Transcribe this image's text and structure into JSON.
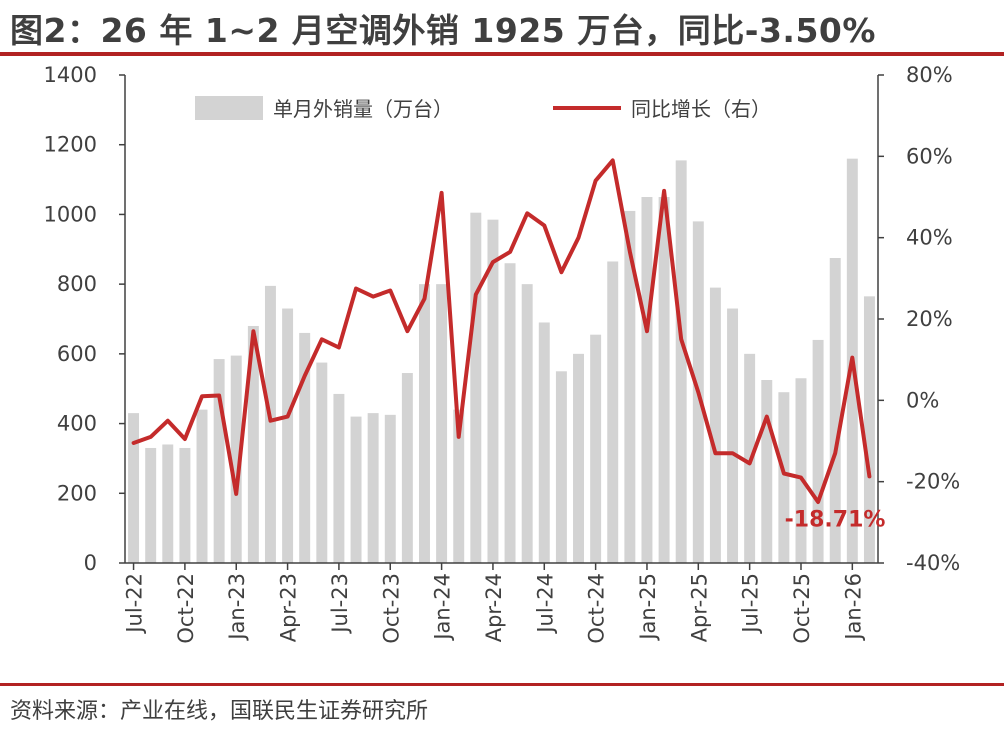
{
  "title": "图2：26 年 1~2 月空调外销 1925 万台，同比-3.50%",
  "source": "资料来源：产业在线，国联民生证券研究所",
  "colors": {
    "bar": "#d3d3d3",
    "line": "#c42b2b",
    "rule": "#b22222",
    "text": "#404040"
  },
  "chart_data": {
    "type": "bar+line",
    "title": "",
    "x": [
      "Jul-22",
      "Aug-22",
      "Sep-22",
      "Oct-22",
      "Nov-22",
      "Dec-22",
      "Jan-23",
      "Feb-23",
      "Mar-23",
      "Apr-23",
      "May-23",
      "Jun-23",
      "Jul-23",
      "Aug-23",
      "Sep-23",
      "Oct-23",
      "Nov-23",
      "Dec-23",
      "Jan-24",
      "Feb-24",
      "Mar-24",
      "Apr-24",
      "May-24",
      "Jun-24",
      "Jul-24",
      "Aug-24",
      "Sep-24",
      "Oct-24",
      "Nov-24",
      "Dec-24",
      "Jan-25",
      "Feb-25",
      "Mar-25",
      "Apr-25",
      "May-25",
      "Jun-25",
      "Jul-25",
      "Aug-25",
      "Sep-25",
      "Oct-25",
      "Nov-25",
      "Dec-25",
      "Jan-26",
      "Feb-26"
    ],
    "x_tick_labels": [
      "Jul-22",
      "Oct-22",
      "Jan-23",
      "Apr-23",
      "Jul-23",
      "Oct-23",
      "Jan-24",
      "Apr-24",
      "Jul-24",
      "Oct-24",
      "Jan-25",
      "Apr-25",
      "Jul-25",
      "Oct-25",
      "Jan-26"
    ],
    "left_axis": {
      "ylim": [
        0,
        1400
      ],
      "ticks": [
        "0",
        "200",
        "400",
        "600",
        "800",
        "1000",
        "1200",
        "1400"
      ]
    },
    "right_axis": {
      "ylim": [
        -40,
        80
      ],
      "ticks": [
        "-40%",
        "-20%",
        "0%",
        "20%",
        "40%",
        "60%",
        "80%"
      ]
    },
    "series": [
      {
        "name": "单月外销量（万台）",
        "type": "bar",
        "axis": "left",
        "values": [
          430,
          330,
          340,
          330,
          440,
          585,
          595,
          680,
          795,
          730,
          660,
          575,
          485,
          420,
          430,
          425,
          545,
          800,
          800,
          440,
          1005,
          985,
          860,
          800,
          690,
          550,
          600,
          655,
          865,
          1010,
          1050,
          1050,
          1155,
          980,
          790,
          730,
          600,
          525,
          490,
          530,
          640,
          875,
          1160,
          765
        ]
      },
      {
        "name": "同比增长（右）",
        "type": "line",
        "axis": "right",
        "values": [
          -10.5,
          -9,
          -5,
          -9.5,
          1,
          1.2,
          -23,
          17,
          -5,
          -4,
          6,
          15,
          13,
          27.5,
          25.5,
          27,
          17,
          25,
          51,
          -9,
          26,
          34,
          36.5,
          46,
          43,
          31.5,
          40,
          54,
          59,
          36.5,
          17,
          51.5,
          15,
          2,
          -13,
          -13,
          -15.5,
          -4,
          -18,
          -19,
          -25,
          -13,
          10.5,
          -18.71
        ]
      }
    ],
    "annotations": [
      {
        "text": "-18.71%",
        "series": "同比增长（右）",
        "x": "Feb-26"
      }
    ],
    "grid": false,
    "legend": "top"
  }
}
